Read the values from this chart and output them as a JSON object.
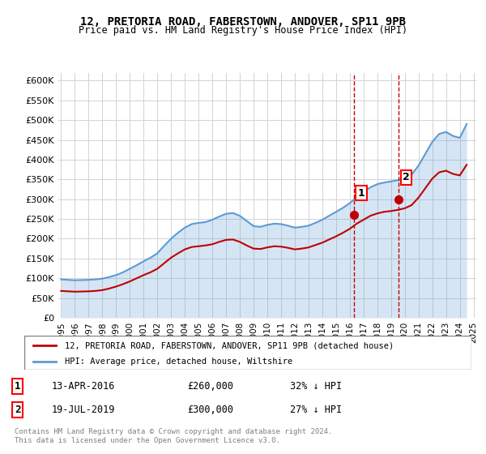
{
  "title": "12, PRETORIA ROAD, FABERSTOWN, ANDOVER, SP11 9PB",
  "subtitle": "Price paid vs. HM Land Registry's House Price Index (HPI)",
  "xlabel": "",
  "ylabel": "",
  "ylim": [
    0,
    620000
  ],
  "yticks": [
    0,
    50000,
    100000,
    150000,
    200000,
    250000,
    300000,
    350000,
    400000,
    450000,
    500000,
    550000,
    600000
  ],
  "ytick_labels": [
    "£0",
    "£50K",
    "£100K",
    "£150K",
    "£200K",
    "£250K",
    "£300K",
    "£350K",
    "£400K",
    "£450K",
    "£500K",
    "£550K",
    "£600K"
  ],
  "hpi_color": "#5b9bd5",
  "price_color": "#c00000",
  "marker_color": "#c00000",
  "vline_color": "#c00000",
  "transaction1_date": 2016.28,
  "transaction1_price": 260000,
  "transaction1_label": "1",
  "transaction2_date": 2019.55,
  "transaction2_price": 300000,
  "transaction2_label": "2",
  "footnote": "Contains HM Land Registry data © Crown copyright and database right 2024.\nThis data is licensed under the Open Government Licence v3.0.",
  "legend_line1": "12, PRETORIA ROAD, FABERSTOWN, ANDOVER, SP11 9PB (detached house)",
  "legend_line2": "HPI: Average price, detached house, Wiltshire",
  "table_row1": [
    "1",
    "13-APR-2016",
    "£260,000",
    "32% ↓ HPI"
  ],
  "table_row2": [
    "2",
    "19-JUL-2019",
    "£300,000",
    "27% ↓ HPI"
  ],
  "hpi_years": [
    1995,
    1995.5,
    1996,
    1996.5,
    1997,
    1997.5,
    1998,
    1998.5,
    1999,
    1999.5,
    2000,
    2000.5,
    2001,
    2001.5,
    2002,
    2002.5,
    2003,
    2003.5,
    2004,
    2004.5,
    2005,
    2005.5,
    2006,
    2006.5,
    2007,
    2007.5,
    2008,
    2008.5,
    2009,
    2009.5,
    2010,
    2010.5,
    2011,
    2011.5,
    2012,
    2012.5,
    2013,
    2013.5,
    2014,
    2014.5,
    2015,
    2015.5,
    2016,
    2016.5,
    2017,
    2017.5,
    2018,
    2018.5,
    2019,
    2019.5,
    2020,
    2020.5,
    2021,
    2021.5,
    2022,
    2022.5,
    2023,
    2023.5,
    2024,
    2024.5
  ],
  "hpi_values": [
    97000,
    96000,
    95000,
    95500,
    96000,
    97000,
    99000,
    103000,
    108000,
    115000,
    124000,
    133000,
    143000,
    152000,
    163000,
    182000,
    200000,
    215000,
    228000,
    237000,
    240000,
    242000,
    248000,
    256000,
    263000,
    265000,
    258000,
    245000,
    232000,
    230000,
    235000,
    238000,
    237000,
    233000,
    228000,
    230000,
    233000,
    240000,
    248000,
    258000,
    268000,
    278000,
    290000,
    305000,
    318000,
    330000,
    338000,
    342000,
    345000,
    348000,
    352000,
    362000,
    385000,
    415000,
    445000,
    465000,
    470000,
    460000,
    455000,
    490000
  ],
  "price_years": [
    1995,
    1995.5,
    1996,
    1996.5,
    1997,
    1997.5,
    1998,
    1998.5,
    1999,
    1999.5,
    2000,
    2000.5,
    2001,
    2001.5,
    2002,
    2002.5,
    2003,
    2003.5,
    2004,
    2004.5,
    2005,
    2005.5,
    2006,
    2006.5,
    2007,
    2007.5,
    2008,
    2008.5,
    2009,
    2009.5,
    2010,
    2010.5,
    2011,
    2011.5,
    2012,
    2012.5,
    2013,
    2013.5,
    2014,
    2014.5,
    2015,
    2015.5,
    2016,
    2016.5,
    2017,
    2017.5,
    2018,
    2018.5,
    2019,
    2019.5,
    2020,
    2020.5,
    2021,
    2021.5,
    2022,
    2022.5,
    2023,
    2023.5,
    2024,
    2024.5
  ],
  "price_values": [
    68000,
    67000,
    66000,
    66500,
    67000,
    68000,
    70000,
    74000,
    79000,
    85000,
    92000,
    100000,
    108000,
    115000,
    124000,
    138000,
    152000,
    163000,
    173000,
    179000,
    181000,
    183000,
    186000,
    192000,
    197000,
    198000,
    192000,
    183000,
    175000,
    174000,
    178000,
    181000,
    180000,
    177000,
    173000,
    175000,
    178000,
    184000,
    190000,
    198000,
    206000,
    215000,
    225000,
    238000,
    248000,
    258000,
    264000,
    268000,
    270000,
    273000,
    277000,
    285000,
    304000,
    328000,
    352000,
    368000,
    372000,
    364000,
    360000,
    387000
  ]
}
